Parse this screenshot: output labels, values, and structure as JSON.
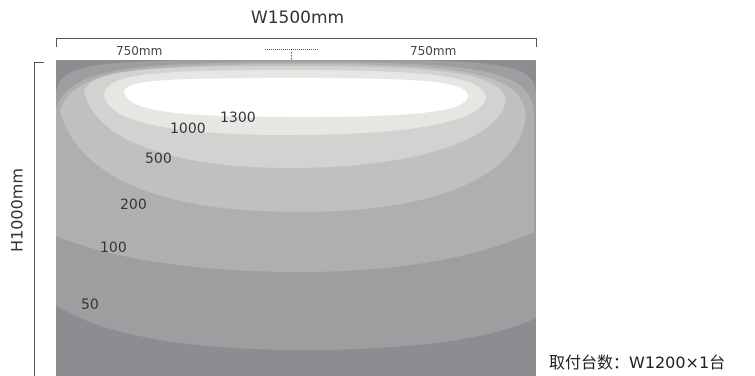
{
  "dimensions": {
    "width_label": "W1500mm",
    "half_left_label": "750mm",
    "half_right_label": "750mm",
    "height_label": "H1000mm"
  },
  "contours": [
    {
      "label": "1300",
      "color": "#ffffff"
    },
    {
      "label": "1000",
      "color": "#e6e7e3"
    },
    {
      "label": "500",
      "color": "#d2d3d1"
    },
    {
      "label": "200",
      "color": "#bfc0c0"
    },
    {
      "label": "100",
      "color": "#aeafb0"
    },
    {
      "label": "50",
      "color": "#9d9ea0"
    }
  ],
  "field": {
    "background_color": "#8c8d90",
    "top_band_color": "#a8a9ab"
  },
  "caption": "取付台数：W1200×1台"
}
